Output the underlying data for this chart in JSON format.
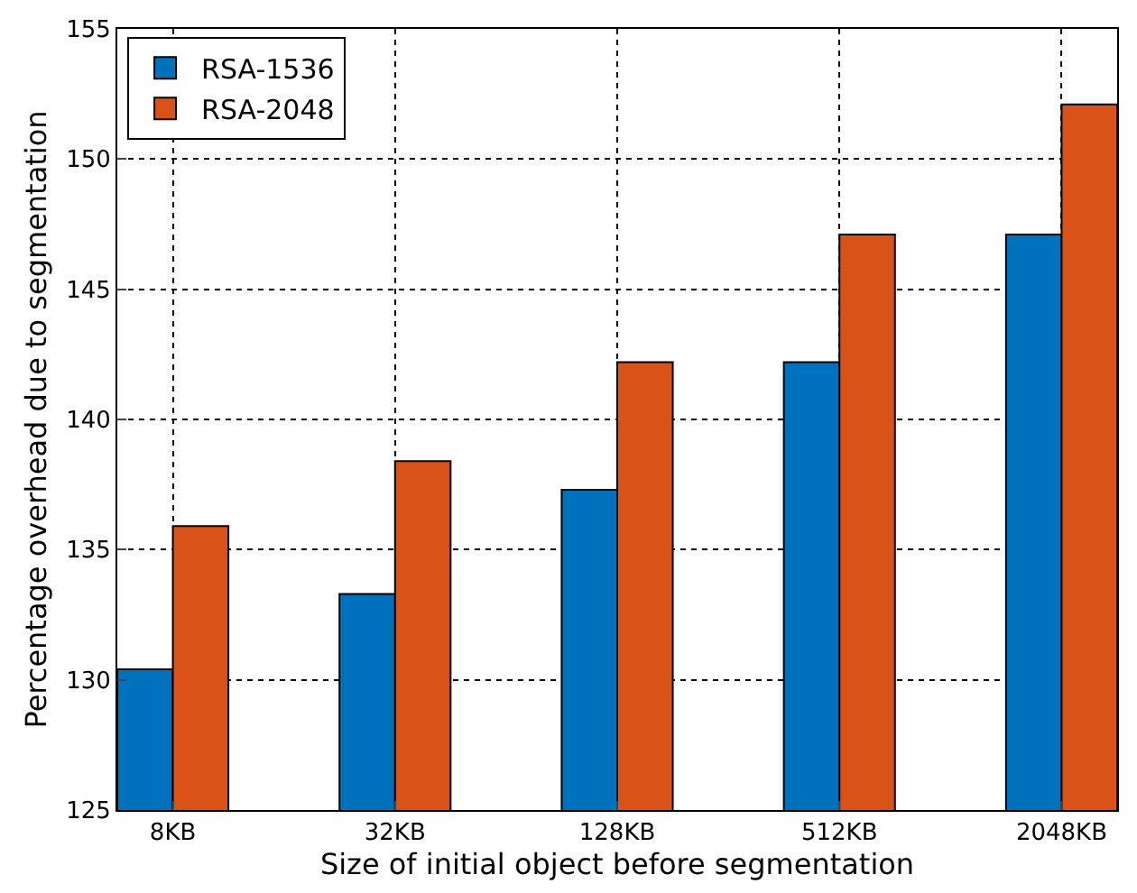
{
  "chart_data": {
    "type": "bar",
    "xlabel": "Size of initial object before segmentation",
    "ylabel": "Percentage overhead due to segmentation",
    "categories": [
      "8KB",
      "32KB",
      "128KB",
      "512KB",
      "2048KB"
    ],
    "series": [
      {
        "name": "RSA-1536",
        "color": "#0072bd",
        "values": [
          130.4,
          133.3,
          137.3,
          142.2,
          147.1
        ]
      },
      {
        "name": "RSA-2048",
        "color": "#d95319",
        "values": [
          135.9,
          138.4,
          142.2,
          147.1,
          152.1
        ]
      }
    ],
    "ylim": [
      125,
      155
    ],
    "yticks": [
      125,
      130,
      135,
      140,
      145,
      150,
      155
    ],
    "grid": true,
    "legend": "top left"
  }
}
